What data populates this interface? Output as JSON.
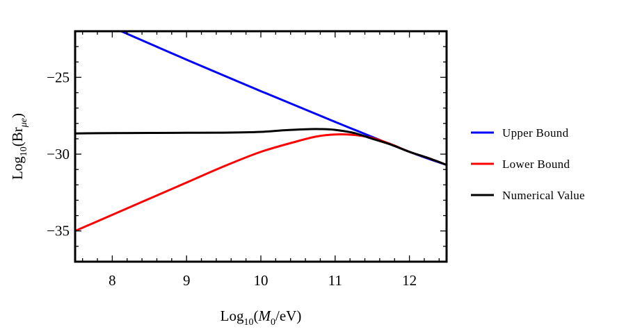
{
  "chart_data": {
    "type": "line",
    "xlabel": {
      "prefix": "Log",
      "sub": "10",
      "open": "(",
      "italic": "M",
      "italic_sub": "0",
      "rest": "/eV)"
    },
    "ylabel": {
      "prefix": "Log",
      "sub": "10",
      "open": "(Br",
      "italic_sub": "μe",
      "close": ")"
    },
    "xlim": [
      7.5,
      12.5
    ],
    "ylim": [
      -37,
      -22
    ],
    "xticks": [
      8,
      9,
      10,
      11,
      12
    ],
    "yticks": [
      -25,
      -30,
      -35
    ],
    "xtick_labels": [
      "8",
      "9",
      "10",
      "11",
      "12"
    ],
    "ytick_labels": [
      "−25",
      "−30",
      "−35"
    ],
    "grid": false,
    "legend_position": "right",
    "series": [
      {
        "name": "Upper Bound",
        "color": "#0000ff",
        "x": [
          8.12,
          9.0,
          10.0,
          11.0,
          12.0,
          12.5
        ],
        "y": [
          -22.0,
          -23.85,
          -25.9,
          -27.9,
          -29.85,
          -30.7
        ]
      },
      {
        "name": "Lower Bound",
        "color": "#ff0000",
        "x": [
          7.5,
          8.0,
          8.5,
          9.0,
          9.5,
          10.0,
          10.5,
          10.75,
          11.0,
          11.25,
          11.5,
          11.75,
          12.0,
          12.25,
          12.5
        ],
        "y": [
          -35.0,
          -33.95,
          -32.9,
          -31.85,
          -30.8,
          -29.85,
          -29.15,
          -28.85,
          -28.72,
          -28.75,
          -28.95,
          -29.35,
          -29.85,
          -30.25,
          -30.7
        ]
      },
      {
        "name": "Numerical Value",
        "color": "#000000",
        "x": [
          7.5,
          8.0,
          8.5,
          9.0,
          9.5,
          10.0,
          10.3,
          10.6,
          10.8,
          11.0,
          11.25,
          11.5,
          11.75,
          12.0,
          12.25,
          12.5
        ],
        "y": [
          -28.65,
          -28.63,
          -28.62,
          -28.61,
          -28.6,
          -28.55,
          -28.45,
          -28.38,
          -28.37,
          -28.42,
          -28.62,
          -29.0,
          -29.38,
          -29.85,
          -30.25,
          -30.7
        ]
      }
    ]
  }
}
